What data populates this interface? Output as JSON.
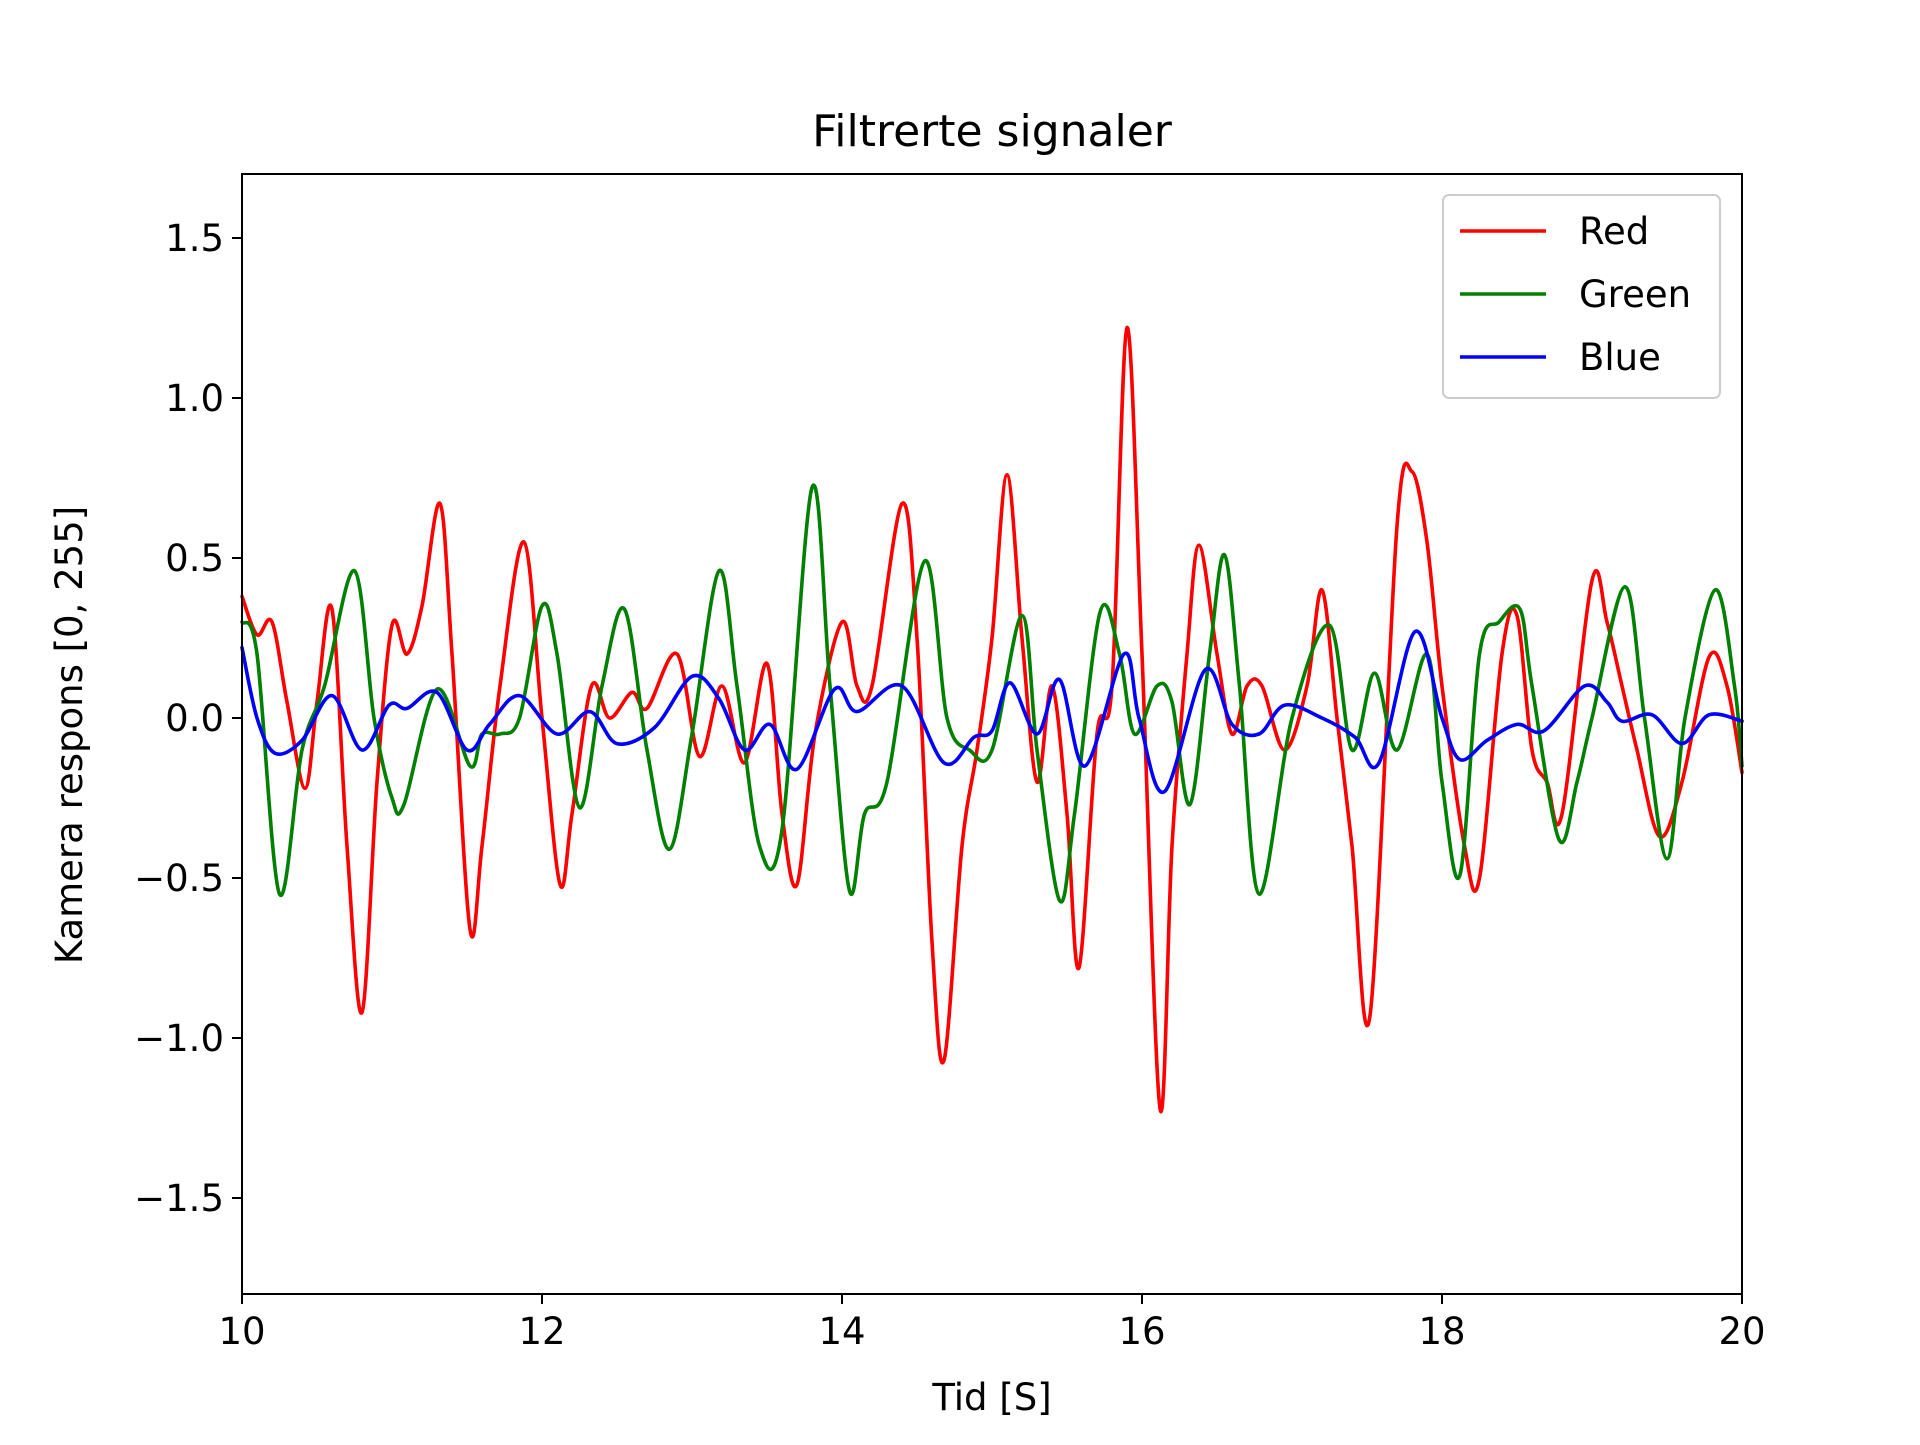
{
  "chart_data": {
    "type": "line",
    "title": "Filtrerte signaler",
    "xlabel": "Tid [S]",
    "ylabel": "Kamera respons [0, 255]",
    "xlim": [
      10,
      20
    ],
    "ylim": [
      -1.8,
      1.7
    ],
    "xticks": [
      10,
      12,
      14,
      16,
      18,
      20
    ],
    "xtick_labels": [
      "10",
      "12",
      "14",
      "16",
      "18",
      "20"
    ],
    "yticks": [
      1.5,
      1.0,
      0.5,
      0.0,
      -0.5,
      -1.0,
      -1.5
    ],
    "ytick_labels": [
      "1.5",
      "1.0",
      "0.5",
      "0.0",
      "−0.5",
      "−1.0",
      "−1.5"
    ],
    "grid": false,
    "legend": {
      "position": "top-right",
      "entries": [
        "Red",
        "Green",
        "Blue"
      ]
    },
    "series": [
      {
        "name": "Red",
        "color": "#ff0000",
        "points": [
          [
            10.0,
            0.38
          ],
          [
            10.1,
            0.26
          ],
          [
            10.2,
            0.3
          ],
          [
            10.3,
            0.05
          ],
          [
            10.42,
            -0.22
          ],
          [
            10.5,
            0.05
          ],
          [
            10.6,
            0.34
          ],
          [
            10.7,
            -0.4
          ],
          [
            10.8,
            -0.92
          ],
          [
            10.9,
            -0.2
          ],
          [
            11.0,
            0.29
          ],
          [
            11.1,
            0.2
          ],
          [
            11.2,
            0.35
          ],
          [
            11.32,
            0.67
          ],
          [
            11.4,
            0.2
          ],
          [
            11.52,
            -0.66
          ],
          [
            11.6,
            -0.4
          ],
          [
            11.72,
            0.1
          ],
          [
            11.88,
            0.55
          ],
          [
            12.0,
            0.0
          ],
          [
            12.12,
            -0.52
          ],
          [
            12.2,
            -0.3
          ],
          [
            12.33,
            0.1
          ],
          [
            12.45,
            0.0
          ],
          [
            12.6,
            0.08
          ],
          [
            12.7,
            0.03
          ],
          [
            12.9,
            0.2
          ],
          [
            13.05,
            -0.12
          ],
          [
            13.2,
            0.1
          ],
          [
            13.35,
            -0.14
          ],
          [
            13.5,
            0.17
          ],
          [
            13.6,
            -0.3
          ],
          [
            13.7,
            -0.52
          ],
          [
            13.82,
            -0.05
          ],
          [
            14.0,
            0.3
          ],
          [
            14.1,
            0.1
          ],
          [
            14.2,
            0.1
          ],
          [
            14.4,
            0.67
          ],
          [
            14.5,
            0.25
          ],
          [
            14.6,
            -0.7
          ],
          [
            14.68,
            -1.07
          ],
          [
            14.8,
            -0.4
          ],
          [
            14.9,
            -0.1
          ],
          [
            15.0,
            0.25
          ],
          [
            15.1,
            0.76
          ],
          [
            15.2,
            0.25
          ],
          [
            15.3,
            -0.2
          ],
          [
            15.4,
            0.1
          ],
          [
            15.5,
            -0.3
          ],
          [
            15.58,
            -0.78
          ],
          [
            15.7,
            -0.05
          ],
          [
            15.8,
            0.1
          ],
          [
            15.9,
            1.22
          ],
          [
            16.0,
            0.2
          ],
          [
            16.12,
            -1.22
          ],
          [
            16.2,
            -0.4
          ],
          [
            16.3,
            0.2
          ],
          [
            16.38,
            0.54
          ],
          [
            16.5,
            0.2
          ],
          [
            16.6,
            -0.05
          ],
          [
            16.7,
            0.1
          ],
          [
            16.8,
            0.1
          ],
          [
            16.95,
            -0.1
          ],
          [
            17.1,
            0.1
          ],
          [
            17.2,
            0.4
          ],
          [
            17.3,
            0.0
          ],
          [
            17.4,
            -0.4
          ],
          [
            17.52,
            -0.93
          ],
          [
            17.7,
            0.6
          ],
          [
            17.8,
            0.77
          ],
          [
            17.9,
            0.55
          ],
          [
            18.0,
            0.1
          ],
          [
            18.15,
            -0.4
          ],
          [
            18.25,
            -0.5
          ],
          [
            18.4,
            0.2
          ],
          [
            18.5,
            0.32
          ],
          [
            18.6,
            -0.1
          ],
          [
            18.7,
            -0.2
          ],
          [
            18.8,
            -0.3
          ],
          [
            19.0,
            0.43
          ],
          [
            19.1,
            0.3
          ],
          [
            19.2,
            0.1
          ],
          [
            19.3,
            -0.1
          ],
          [
            19.45,
            -0.37
          ],
          [
            19.6,
            -0.2
          ],
          [
            19.78,
            0.19
          ],
          [
            19.9,
            0.1
          ],
          [
            20.0,
            -0.17
          ]
        ]
      },
      {
        "name": "Green",
        "color": "#008000",
        "points": [
          [
            10.0,
            0.3
          ],
          [
            10.1,
            0.2
          ],
          [
            10.25,
            -0.55
          ],
          [
            10.4,
            -0.1
          ],
          [
            10.55,
            0.1
          ],
          [
            10.75,
            0.46
          ],
          [
            10.88,
            0.0
          ],
          [
            11.0,
            -0.25
          ],
          [
            11.08,
            -0.27
          ],
          [
            11.3,
            0.09
          ],
          [
            11.52,
            -0.15
          ],
          [
            11.6,
            -0.05
          ],
          [
            11.72,
            -0.05
          ],
          [
            11.85,
            0.0
          ],
          [
            12.0,
            0.35
          ],
          [
            12.1,
            0.2
          ],
          [
            12.25,
            -0.28
          ],
          [
            12.4,
            0.1
          ],
          [
            12.55,
            0.34
          ],
          [
            12.7,
            -0.1
          ],
          [
            12.85,
            -0.41
          ],
          [
            13.0,
            -0.05
          ],
          [
            13.18,
            0.46
          ],
          [
            13.3,
            0.1
          ],
          [
            13.45,
            -0.4
          ],
          [
            13.6,
            -0.35
          ],
          [
            13.8,
            0.72
          ],
          [
            13.92,
            0.1
          ],
          [
            14.05,
            -0.54
          ],
          [
            14.15,
            -0.3
          ],
          [
            14.3,
            -0.2
          ],
          [
            14.55,
            0.49
          ],
          [
            14.7,
            0.0
          ],
          [
            14.85,
            -0.1
          ],
          [
            15.0,
            -0.1
          ],
          [
            15.2,
            0.32
          ],
          [
            15.3,
            -0.1
          ],
          [
            15.45,
            -0.57
          ],
          [
            15.55,
            -0.3
          ],
          [
            15.72,
            0.33
          ],
          [
            15.85,
            0.2
          ],
          [
            15.95,
            -0.05
          ],
          [
            16.1,
            0.1
          ],
          [
            16.2,
            0.05
          ],
          [
            16.32,
            -0.27
          ],
          [
            16.45,
            0.2
          ],
          [
            16.55,
            0.51
          ],
          [
            16.65,
            0.1
          ],
          [
            16.78,
            -0.55
          ],
          [
            17.0,
            0.0
          ],
          [
            17.25,
            0.29
          ],
          [
            17.4,
            -0.1
          ],
          [
            17.55,
            0.14
          ],
          [
            17.7,
            -0.1
          ],
          [
            17.9,
            0.2
          ],
          [
            18.0,
            -0.2
          ],
          [
            18.12,
            -0.49
          ],
          [
            18.25,
            0.2
          ],
          [
            18.38,
            0.3
          ],
          [
            18.52,
            0.34
          ],
          [
            18.6,
            0.1
          ],
          [
            18.78,
            -0.38
          ],
          [
            18.9,
            -0.2
          ],
          [
            19.0,
            0.0
          ],
          [
            19.22,
            0.41
          ],
          [
            19.35,
            0.0
          ],
          [
            19.5,
            -0.44
          ],
          [
            19.62,
            0.0
          ],
          [
            19.82,
            0.4
          ],
          [
            19.95,
            0.1
          ],
          [
            20.0,
            -0.15
          ]
        ]
      },
      {
        "name": "Blue",
        "color": "#0000ff",
        "points": [
          [
            10.0,
            0.22
          ],
          [
            10.1,
            0.0
          ],
          [
            10.22,
            -0.11
          ],
          [
            10.4,
            -0.07
          ],
          [
            10.6,
            0.07
          ],
          [
            10.8,
            -0.1
          ],
          [
            10.98,
            0.04
          ],
          [
            11.1,
            0.03
          ],
          [
            11.3,
            0.08
          ],
          [
            11.5,
            -0.1
          ],
          [
            11.65,
            -0.02
          ],
          [
            11.85,
            0.07
          ],
          [
            12.1,
            -0.05
          ],
          [
            12.32,
            0.02
          ],
          [
            12.5,
            -0.08
          ],
          [
            12.75,
            -0.03
          ],
          [
            13.0,
            0.13
          ],
          [
            13.18,
            0.06
          ],
          [
            13.35,
            -0.1
          ],
          [
            13.52,
            -0.02
          ],
          [
            13.7,
            -0.16
          ],
          [
            13.95,
            0.09
          ],
          [
            14.1,
            0.02
          ],
          [
            14.4,
            0.1
          ],
          [
            14.68,
            -0.14
          ],
          [
            14.88,
            -0.06
          ],
          [
            15.0,
            -0.04
          ],
          [
            15.12,
            0.11
          ],
          [
            15.3,
            -0.05
          ],
          [
            15.45,
            0.12
          ],
          [
            15.62,
            -0.15
          ],
          [
            15.88,
            0.2
          ],
          [
            15.98,
            0.0
          ],
          [
            16.15,
            -0.23
          ],
          [
            16.42,
            0.15
          ],
          [
            16.6,
            -0.02
          ],
          [
            16.78,
            -0.05
          ],
          [
            16.95,
            0.04
          ],
          [
            17.2,
            0.0
          ],
          [
            17.42,
            -0.06
          ],
          [
            17.58,
            -0.14
          ],
          [
            17.82,
            0.27
          ],
          [
            18.0,
            0.0
          ],
          [
            18.12,
            -0.13
          ],
          [
            18.3,
            -0.07
          ],
          [
            18.5,
            -0.02
          ],
          [
            18.68,
            -0.04
          ],
          [
            18.95,
            0.1
          ],
          [
            19.1,
            0.05
          ],
          [
            19.2,
            -0.01
          ],
          [
            19.4,
            0.01
          ],
          [
            19.6,
            -0.08
          ],
          [
            19.78,
            0.01
          ],
          [
            20.0,
            -0.01
          ]
        ]
      }
    ]
  }
}
